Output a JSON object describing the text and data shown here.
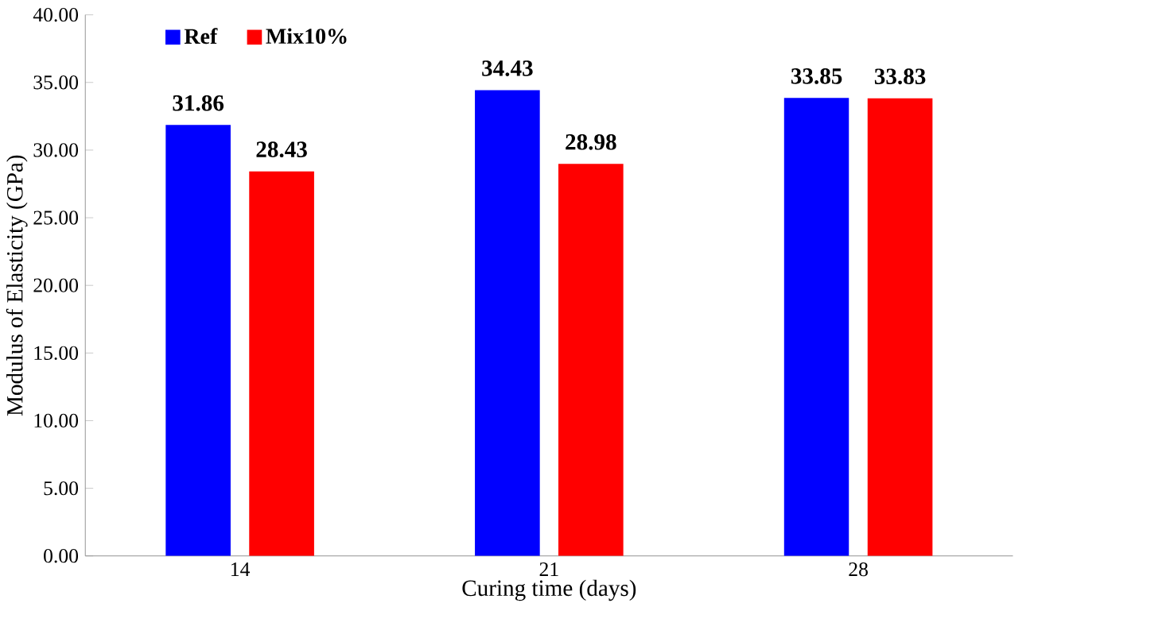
{
  "chart_data": {
    "type": "bar",
    "xlabel": "Curing time (days)",
    "ylabel": "Modulus of Elasticity (GPa)",
    "categories": [
      "14",
      "21",
      "28"
    ],
    "series": [
      {
        "name": "Ref",
        "color": "#0000ff",
        "values": [
          31.86,
          34.43,
          33.85
        ]
      },
      {
        "name": "Mix10%",
        "color": "#ff0000",
        "values": [
          28.43,
          28.98,
          33.83
        ]
      }
    ],
    "ylim": [
      0,
      40
    ],
    "yticks": [
      {
        "value": 0,
        "label": "0.00"
      },
      {
        "value": 5,
        "label": "5.00"
      },
      {
        "value": 10,
        "label": "10.00"
      },
      {
        "value": 15,
        "label": "15.00"
      },
      {
        "value": 20,
        "label": "20.00"
      },
      {
        "value": 25,
        "label": "25.00"
      },
      {
        "value": 30,
        "label": "30.00"
      },
      {
        "value": 35,
        "label": "35.00"
      },
      {
        "value": 40,
        "label": "40.00"
      }
    ],
    "grid": false,
    "legend": "top left",
    "data_labels": true
  }
}
